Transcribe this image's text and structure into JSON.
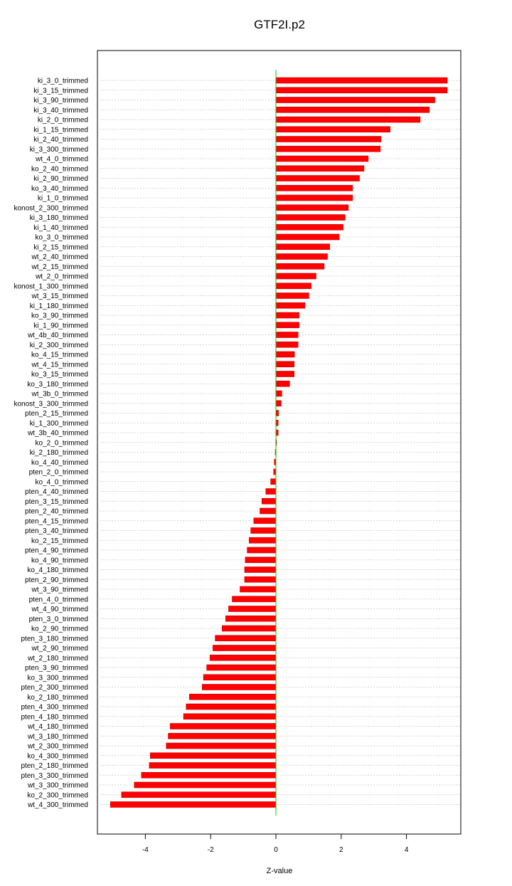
{
  "chart_data": {
    "type": "bar",
    "orientation": "horizontal",
    "title": "GTF2I.p2",
    "xlabel": "Z-value",
    "ylabel": "",
    "xlim": [
      -5.5,
      5.7
    ],
    "xticks": [
      -4,
      -2,
      0,
      2,
      4
    ],
    "grid": true,
    "zero_line": true,
    "colors": {
      "bar": "#ff0000",
      "bar_dark": "#cc0000",
      "zero_line": "#00cc00",
      "grid": "#c8c8c8",
      "frame": "#000000"
    },
    "categories": [
      "ki_3_0_trimmed",
      "ki_3_15_trimmed",
      "ki_3_90_trimmed",
      "ki_3_40_trimmed",
      "ki_2_0_trimmed",
      "ki_1_15_trimmed",
      "ki_2_40_trimmed",
      "ki_3_300_trimmed",
      "wt_4_0_trimmed",
      "ko_2_40_trimmed",
      "ki_2_90_trimmed",
      "ko_3_40_trimmed",
      "ki_1_0_trimmed",
      "konost_2_300_trimmed",
      "ki_3_180_trimmed",
      "ki_1_40_trimmed",
      "ko_3_0_trimmed",
      "ki_2_15_trimmed",
      "wt_2_40_trimmed",
      "wt_2_15_trimmed",
      "wt_2_0_trimmed",
      "konost_1_300_trimmed",
      "wt_3_15_trimmed",
      "ki_1_180_trimmed",
      "ko_3_90_trimmed",
      "ki_1_90_trimmed",
      "wt_4b_40_trimmed",
      "ki_2_300_trimmed",
      "ko_4_15_trimmed",
      "wt_4_15_trimmed",
      "ko_3_15_trimmed",
      "ko_3_180_trimmed",
      "wt_3b_0_trimmed",
      "konost_3_300_trimmed",
      "pten_2_15_trimmed",
      "ki_1_300_trimmed",
      "wt_3b_40_trimmed",
      "ko_2_0_trimmed",
      "ki_2_180_trimmed",
      "ko_4_40_trimmed",
      "pten_2_0_trimmed",
      "ko_4_0_trimmed",
      "pten_4_40_trimmed",
      "pten_3_15_trimmed",
      "pten_2_40_trimmed",
      "pten_4_15_trimmed",
      "pten_3_40_trimmed",
      "ko_2_15_trimmed",
      "pten_4_90_trimmed",
      "ko_4_90_trimmed",
      "ko_4_180_trimmed",
      "pten_2_90_trimmed",
      "wt_3_90_trimmed",
      "pten_4_0_trimmed",
      "wt_4_90_trimmed",
      "pten_3_0_trimmed",
      "ko_2_90_trimmed",
      "pten_3_180_trimmed",
      "wt_2_90_trimmed",
      "wt_2_180_trimmed",
      "pten_3_90_trimmed",
      "ko_3_300_trimmed",
      "pten_2_300_trimmed",
      "ko_2_180_trimmed",
      "pten_4_300_trimmed",
      "pten_4_180_trimmed",
      "wt_4_180_trimmed",
      "wt_3_180_trimmed",
      "wt_2_300_trimmed",
      "ko_4_300_trimmed",
      "pten_2_180_trimmed",
      "pten_3_300_trimmed",
      "wt_3_300_trimmed",
      "ko_2_300_trimmed",
      "wt_4_300_trimmed"
    ],
    "values": [
      5.25,
      5.25,
      4.87,
      4.7,
      4.42,
      3.5,
      3.22,
      3.2,
      2.83,
      2.7,
      2.56,
      2.35,
      2.35,
      2.22,
      2.12,
      2.06,
      1.94,
      1.65,
      1.58,
      1.48,
      1.23,
      1.08,
      1.01,
      0.89,
      0.71,
      0.71,
      0.68,
      0.68,
      0.57,
      0.56,
      0.56,
      0.42,
      0.18,
      0.16,
      0.08,
      0.07,
      0.07,
      0.02,
      -0.02,
      -0.05,
      -0.07,
      -0.16,
      -0.31,
      -0.43,
      -0.49,
      -0.68,
      -0.77,
      -0.82,
      -0.88,
      -0.94,
      -0.96,
      -0.96,
      -1.1,
      -1.34,
      -1.45,
      -1.54,
      -1.65,
      -1.86,
      -1.93,
      -2.02,
      -2.12,
      -2.22,
      -2.26,
      -2.65,
      -2.75,
      -2.83,
      -3.24,
      -3.3,
      -3.36,
      -3.85,
      -3.88,
      -4.12,
      -4.34,
      -4.73,
      -5.07
    ]
  }
}
